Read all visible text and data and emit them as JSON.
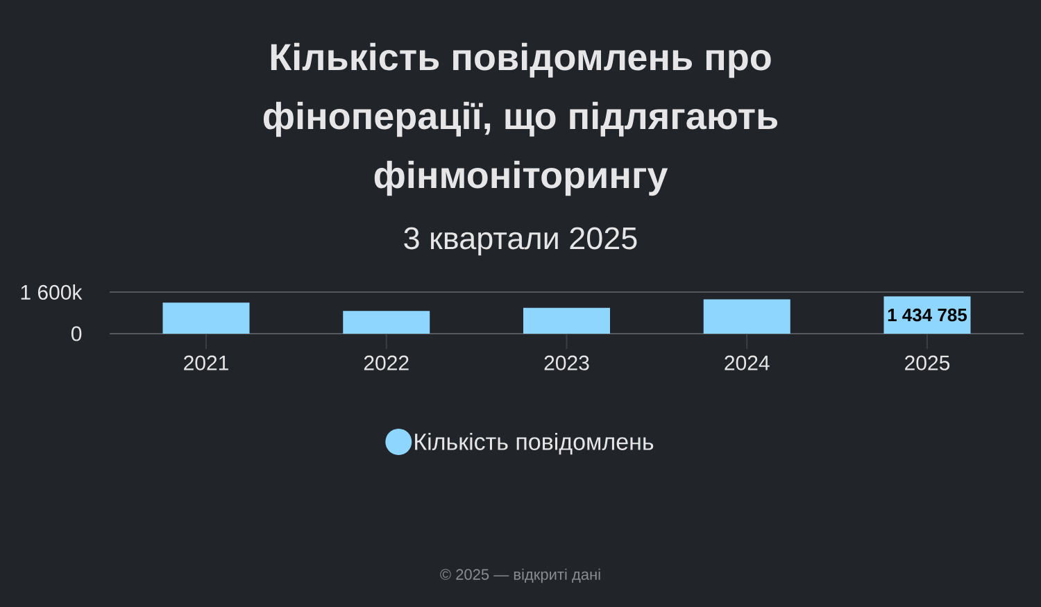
{
  "chart_data": {
    "type": "bar",
    "title": "Кількість повідомлень про фіноперації, що підлягають фінмоніторингу",
    "subtitle": "3 квартали 2025",
    "categories": [
      "2021",
      "2022",
      "2023",
      "2024",
      "2025"
    ],
    "series": [
      {
        "name": "Кількість повідомлень",
        "color": "#8fd6ff",
        "values": [
          1190000,
          870000,
          990000,
          1320000,
          1434785
        ],
        "value_labels": [
          null,
          null,
          null,
          null,
          "1 434 785"
        ]
      }
    ],
    "ylim": [
      0,
      1600000
    ],
    "yticks": [
      0,
      {
        "value": 1600000,
        "label": "1 600k"
      }
    ],
    "legend": "bottom",
    "annotations": [
      "© 2025 — відкриті дані"
    ]
  }
}
